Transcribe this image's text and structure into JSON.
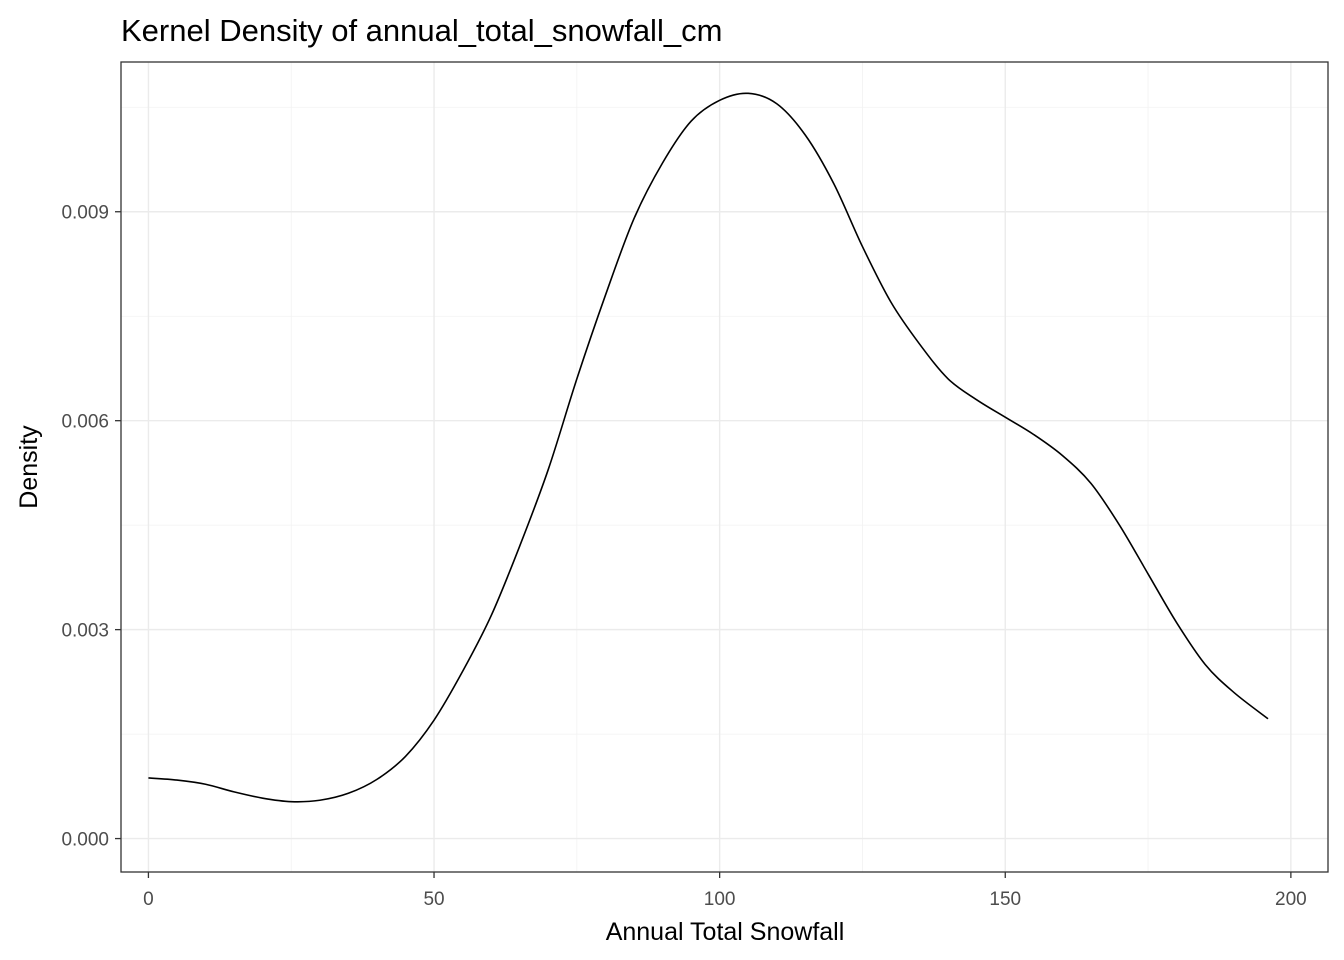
{
  "chart_data": {
    "type": "line",
    "title": "Kernel Density of annual_total_snowfall_cm",
    "xlabel": "Annual Total Snowfall",
    "ylabel": "Density",
    "xlim": [
      -4.8,
      206.5
    ],
    "ylim": [
      -0.00048,
      0.01115
    ],
    "x_ticks": [
      0,
      50,
      100,
      150,
      200
    ],
    "x_tick_labels": [
      "0",
      "50",
      "100",
      "150",
      "200"
    ],
    "y_ticks": [
      0.0,
      0.003,
      0.006,
      0.009
    ],
    "y_tick_labels": [
      "0.000",
      "0.003",
      "0.006",
      "0.009"
    ],
    "grid": true,
    "legend": "none",
    "series": [
      {
        "x": [
          0,
          5,
          10,
          15,
          20,
          25,
          30,
          35,
          40,
          45,
          50,
          55,
          60,
          65,
          70,
          75,
          80,
          85,
          90,
          95,
          100,
          105,
          110,
          115,
          120,
          125,
          130,
          135,
          140,
          145,
          150,
          155,
          160,
          165,
          170,
          175,
          180,
          185,
          190,
          196
        ],
        "values": [
          0.00087,
          0.00084,
          0.00078,
          0.00067,
          0.00058,
          0.00053,
          0.00055,
          0.00065,
          0.00085,
          0.00118,
          0.0017,
          0.0024,
          0.0032,
          0.0042,
          0.0053,
          0.0066,
          0.0078,
          0.0089,
          0.0097,
          0.0103,
          0.0106,
          0.0107,
          0.01055,
          0.0101,
          0.0094,
          0.0085,
          0.0077,
          0.0071,
          0.0066,
          0.0063,
          0.00605,
          0.0058,
          0.0055,
          0.0051,
          0.0045,
          0.0038,
          0.0031,
          0.0025,
          0.0021,
          0.00172
        ],
        "color": "#000000"
      }
    ]
  }
}
